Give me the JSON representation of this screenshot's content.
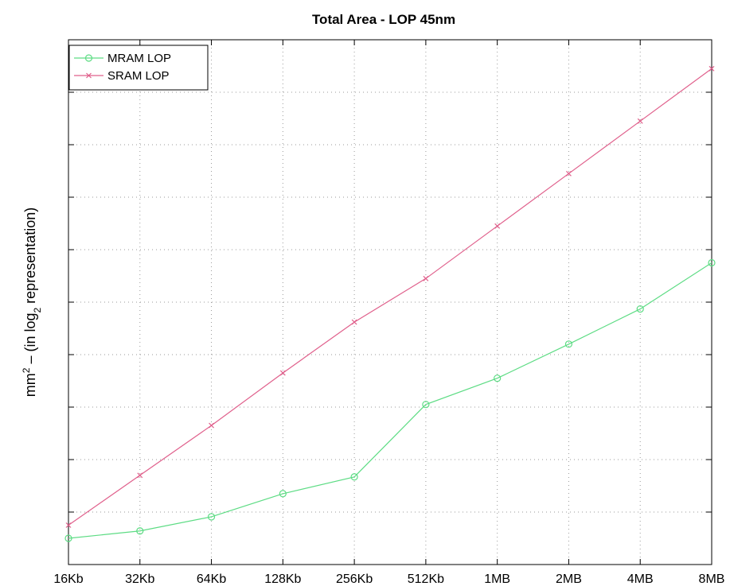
{
  "chart_data": {
    "type": "line",
    "title": "Total Area - LOP  45nm",
    "ylabel": "mm",
    "ylabel_sup": "2",
    "ylabel_mid": " – (in log",
    "ylabel_sub": "2",
    "ylabel_end": " representation)",
    "xlabel": "",
    "categories": [
      "16Kb",
      "32Kb",
      "64Kb",
      "128Kb",
      "256Kb",
      "512Kb",
      "1MB",
      "2MB",
      "4MB",
      "8MB"
    ],
    "ylim": [
      0,
      10
    ],
    "y_ticks": [
      1,
      2,
      3,
      4,
      5,
      6,
      7,
      8,
      9
    ],
    "y_tick_labels_shown": false,
    "grid": true,
    "legend_position": "top-left",
    "series": [
      {
        "name": "MRAM LOP",
        "color": "#5ddc84",
        "marker": "circle",
        "values": [
          0.5,
          0.64,
          0.91,
          1.35,
          1.67,
          3.05,
          3.55,
          4.2,
          4.87,
          5.75
        ]
      },
      {
        "name": "SRAM LOP",
        "color": "#e0608c",
        "marker": "x",
        "values": [
          0.75,
          1.7,
          2.65,
          3.65,
          4.62,
          5.45,
          6.45,
          7.45,
          8.45,
          9.45
        ]
      }
    ]
  }
}
